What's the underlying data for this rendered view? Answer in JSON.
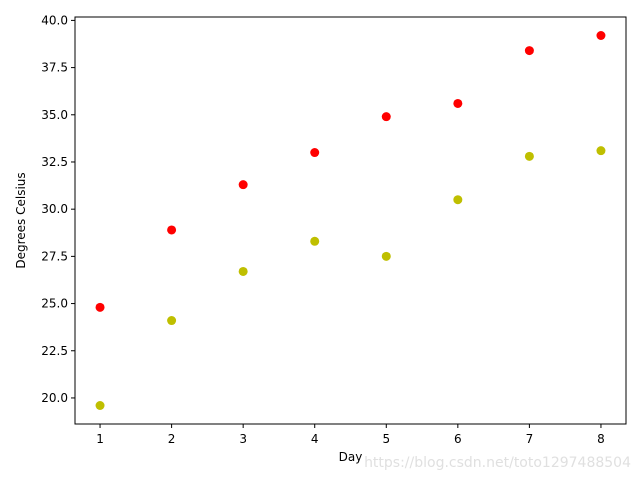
{
  "chart_data": {
    "type": "scatter",
    "title": "",
    "xlabel": "Day",
    "ylabel": "Degrees Celsius",
    "x": [
      1,
      2,
      3,
      4,
      5,
      6,
      7,
      8
    ],
    "xlim": [
      0.65,
      8.35
    ],
    "ylim": [
      18.62,
      40.18
    ],
    "xticks": [
      1,
      2,
      3,
      4,
      5,
      6,
      7,
      8
    ],
    "yticks": [
      20.0,
      22.5,
      25.0,
      27.5,
      30.0,
      32.5,
      35.0,
      37.5,
      40.0
    ],
    "xtick_labels": [
      "1",
      "2",
      "3",
      "4",
      "5",
      "6",
      "7",
      "8"
    ],
    "ytick_labels": [
      "20.0",
      "22.5",
      "25.0",
      "27.5",
      "30.0",
      "32.5",
      "35.0",
      "37.5",
      "40.0"
    ],
    "grid": false,
    "legend": "none",
    "series": [
      {
        "color": "#ff0000",
        "values": [
          24.8,
          28.9,
          31.3,
          33.0,
          34.9,
          35.6,
          38.4,
          39.2
        ]
      },
      {
        "color": "#bfbf00",
        "values": [
          19.6,
          24.1,
          26.7,
          28.3,
          27.5,
          30.5,
          32.8,
          33.1
        ]
      }
    ]
  },
  "watermark": "https://blog.csdn.net/toto1297488504"
}
